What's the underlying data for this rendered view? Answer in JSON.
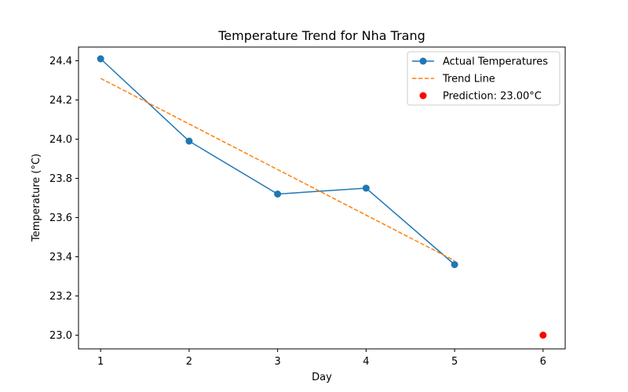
{
  "chart_data": {
    "type": "line",
    "title": "Temperature Trend for Nha Trang",
    "xlabel": "Day",
    "ylabel": "Temperature (°C)",
    "xlim": [
      0.75,
      6.25
    ],
    "ylim": [
      22.93,
      24.47
    ],
    "xticks": [
      1,
      2,
      3,
      4,
      5,
      6
    ],
    "yticks": [
      23.0,
      23.2,
      23.4,
      23.6,
      23.8,
      24.0,
      24.2,
      24.4
    ],
    "ytick_labels": [
      "23.0",
      "23.2",
      "23.4",
      "23.6",
      "23.8",
      "24.0",
      "24.2",
      "24.4"
    ],
    "grid": false,
    "legend_position": "top-right",
    "series": [
      {
        "name": "Actual Temperatures",
        "kind": "line-marker",
        "color": "#1f77b4",
        "x": [
          1,
          2,
          3,
          4,
          5
        ],
        "y": [
          24.41,
          23.99,
          23.72,
          23.75,
          23.36
        ]
      },
      {
        "name": "Trend Line",
        "kind": "dashed-line",
        "color": "#ff7f0e",
        "x": [
          1,
          5
        ],
        "y": [
          24.31,
          23.38
        ]
      },
      {
        "name": "Prediction: 23.00°C",
        "kind": "scatter",
        "color": "#ff0000",
        "x": [
          6
        ],
        "y": [
          23.0
        ]
      }
    ]
  }
}
